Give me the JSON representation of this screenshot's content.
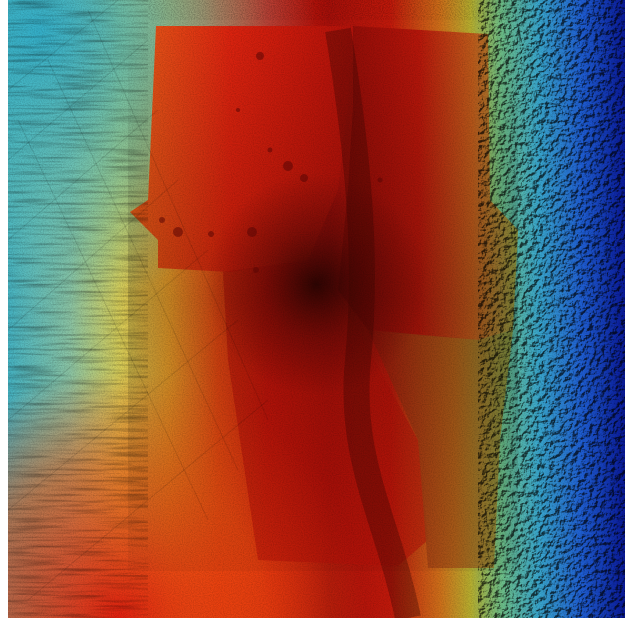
{
  "map": {
    "kind": "bathymetric-hillshade-relief",
    "colormap": "jet",
    "colors": {
      "deep_blue": "#0a1a9c",
      "blue": "#1f5fd6",
      "cyan": "#3cc4c8",
      "green_yellow": "#b9d64a",
      "yellow": "#e9d63a",
      "orange": "#f07a12",
      "red": "#d8170c",
      "dark_red": "#3a0503"
    },
    "overlay": "survey-patch-mosaic-with-seabed-texture"
  }
}
